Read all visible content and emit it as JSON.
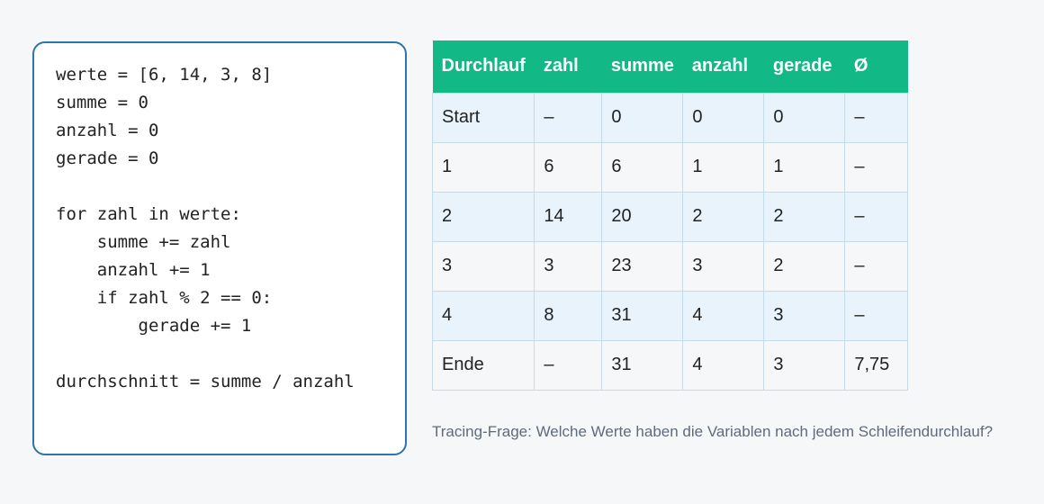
{
  "code": "werte = [6, 14, 3, 8]\nsumme = 0\nanzahl = 0\ngerade = 0\n\nfor zahl in werte:\n    summe += zahl\n    anzahl += 1\n    if zahl % 2 == 0:\n        gerade += 1\n\ndurchschnitt = summe / anzahl",
  "table": {
    "header": [
      "Durchlauf",
      "zahl",
      "summe",
      "anzahl",
      "gerade",
      "Ø"
    ],
    "rows": [
      [
        "Start",
        "–",
        "0",
        "0",
        "0",
        "–"
      ],
      [
        "1",
        "6",
        "6",
        "1",
        "1",
        "–"
      ],
      [
        "2",
        "14",
        "20",
        "2",
        "2",
        "–"
      ],
      [
        "3",
        "3",
        "23",
        "3",
        "2",
        "–"
      ],
      [
        "4",
        "8",
        "31",
        "4",
        "3",
        "–"
      ],
      [
        "Ende",
        "–",
        "31",
        "4",
        "3",
        "7,75"
      ]
    ]
  },
  "caption": "Tracing-Frage: Welche Werte haben die Variablen nach jedem Schleifendurchlauf?"
}
